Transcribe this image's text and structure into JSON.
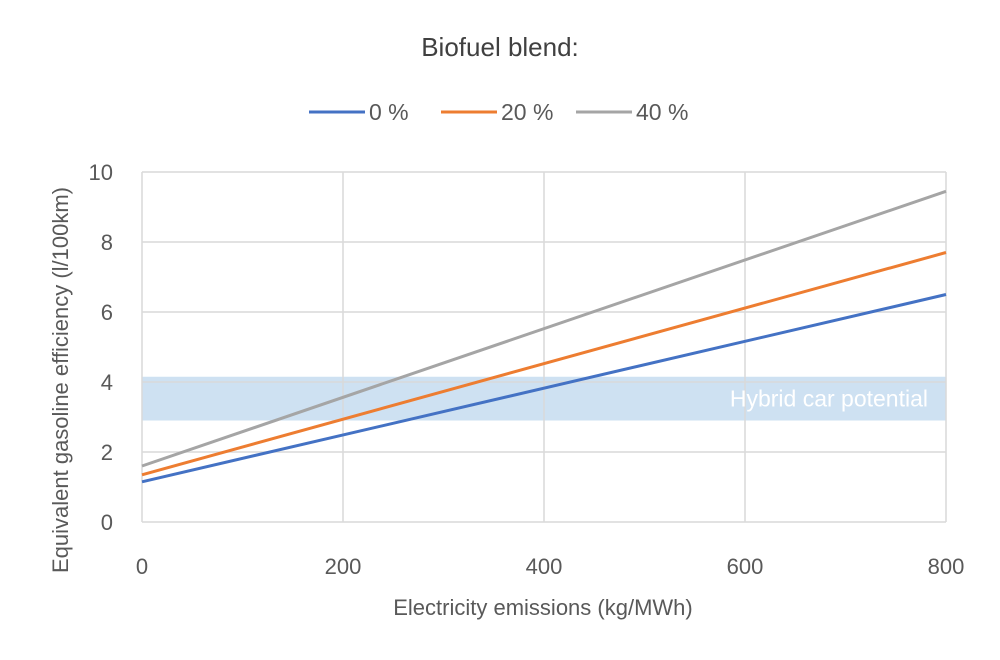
{
  "chart_data": {
    "type": "line",
    "title": "Biofuel blend:",
    "xlabel": "Electricity emissions (kg/MWh)",
    "ylabel": "Equivalent gasoline efficiency (l/100km)",
    "xlim": [
      0,
      800
    ],
    "ylim": [
      0,
      10
    ],
    "x_ticks": [
      "0",
      "200",
      "400",
      "600",
      "800"
    ],
    "y_ticks": [
      "0",
      "2",
      "4",
      "6",
      "8",
      "10"
    ],
    "grid": true,
    "legend_position": "top",
    "series": [
      {
        "name": "0 %",
        "color": "#4472C4",
        "x": [
          0,
          800
        ],
        "y": [
          1.15,
          6.5
        ]
      },
      {
        "name": "20 %",
        "color": "#ED7D31",
        "x": [
          0,
          800
        ],
        "y": [
          1.35,
          7.7
        ]
      },
      {
        "name": "40 %",
        "color": "#A5A5A5",
        "x": [
          0,
          800
        ],
        "y": [
          1.6,
          9.45
        ]
      }
    ],
    "annotations": [
      {
        "label": "Hybrid car potential",
        "type": "band",
        "y_range": [
          2.9,
          4.15
        ],
        "color": "#BDD7EE"
      }
    ]
  }
}
